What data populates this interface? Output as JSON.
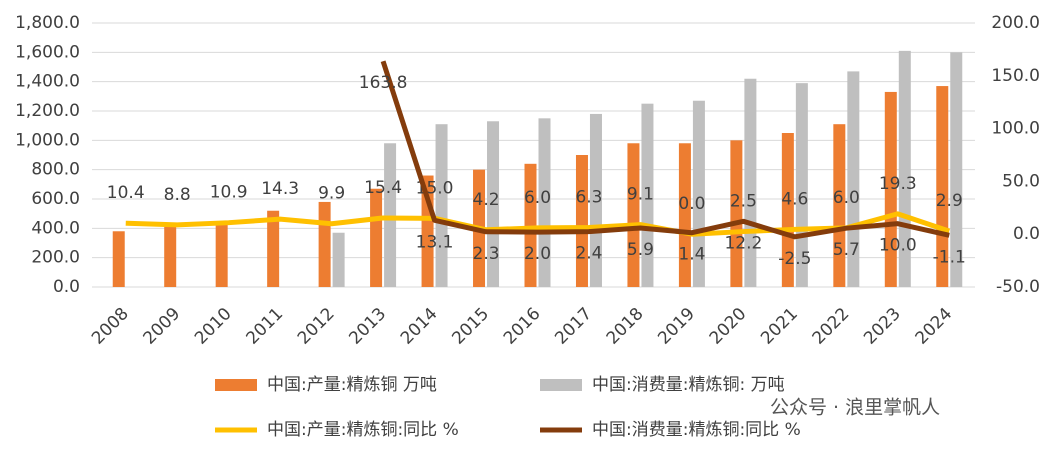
{
  "chart_data": {
    "type": "bar-line",
    "categories": [
      "2008",
      "2009",
      "2010",
      "2011",
      "2012",
      "2013",
      "2014",
      "2015",
      "2016",
      "2017",
      "2018",
      "2019",
      "2020",
      "2021",
      "2022",
      "2023",
      "2024"
    ],
    "series": [
      {
        "name": "中国:产量:精炼铜 万吨",
        "type": "bar",
        "color": "#ed7d31",
        "values": [
          380,
          410,
          450,
          520,
          580,
          670,
          760,
          800,
          840,
          900,
          980,
          980,
          1000,
          1050,
          1110,
          1330,
          1370
        ]
      },
      {
        "name": "中国:消费量:精炼铜: 万吨",
        "type": "bar",
        "color": "#bfbfbf",
        "values": [
          null,
          null,
          null,
          null,
          370,
          980,
          1110,
          1130,
          1150,
          1180,
          1250,
          1270,
          1420,
          1390,
          1470,
          1610,
          1600
        ]
      },
      {
        "name": "中国:产量:精炼铜:同比 %",
        "type": "line",
        "axis": "y2",
        "color": "#ffc000",
        "label_side": "above",
        "values": [
          10.4,
          8.8,
          10.9,
          14.3,
          9.9,
          15.4,
          15.0,
          4.2,
          6.0,
          6.3,
          9.1,
          0.0,
          2.5,
          4.6,
          6.0,
          19.3,
          2.9
        ],
        "value_labels": [
          "10.4",
          "8.8",
          "10.9",
          "14.3",
          "9.9",
          "15.4",
          "15.0",
          "4.2",
          "6.0",
          "6.3",
          "9.1",
          "0.0",
          "2.5",
          "4.6",
          "6.0",
          "19.3",
          "2.9"
        ]
      },
      {
        "name": "中国:消费量:精炼铜:同比 %",
        "type": "line",
        "axis": "y2",
        "color": "#843c0c",
        "label_side": "below",
        "values": [
          null,
          null,
          null,
          null,
          null,
          163.8,
          13.1,
          2.3,
          2.0,
          2.4,
          5.9,
          1.4,
          12.2,
          -2.5,
          5.7,
          10.0,
          -1.1
        ],
        "value_labels": [
          null,
          null,
          null,
          null,
          null,
          "163.8",
          "13.1",
          "2.3",
          "2.0",
          "2.4",
          "5.9",
          "1.4",
          "12.2",
          "-2.5",
          "5.7",
          "10.0",
          "-1.1"
        ]
      }
    ],
    "ylim": [
      0,
      1800
    ],
    "yticks": [
      {
        "value": 0,
        "label": "0.0"
      },
      {
        "value": 200,
        "label": "200.0"
      },
      {
        "value": 400,
        "label": "400.0"
      },
      {
        "value": 600,
        "label": "600.0"
      },
      {
        "value": 800,
        "label": "800.0"
      },
      {
        "value": 1000,
        "label": "1,000.0"
      },
      {
        "value": 1200,
        "label": "1,200.0"
      },
      {
        "value": 1400,
        "label": "1,400.0"
      },
      {
        "value": 1600,
        "label": "1,600.0"
      },
      {
        "value": 1800,
        "label": "1,800.0"
      }
    ],
    "y2lim": [
      -50,
      200
    ],
    "y2ticks": [
      {
        "value": -50,
        "label": "-50.0"
      },
      {
        "value": 0,
        "label": "0.0"
      },
      {
        "value": 50,
        "label": "50.0"
      },
      {
        "value": 100,
        "label": "100.0"
      },
      {
        "value": 150,
        "label": "150.0"
      },
      {
        "value": 200,
        "label": "200.0"
      }
    ],
    "grid": true,
    "watermark": "公众号 · 浪里掌帆人"
  }
}
